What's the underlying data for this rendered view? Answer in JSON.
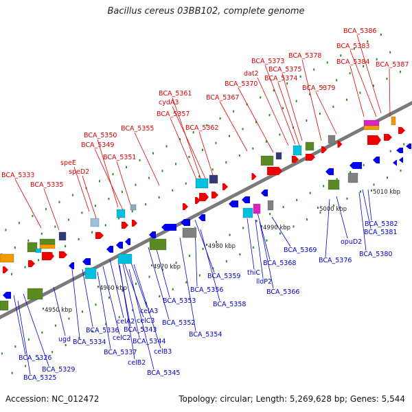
{
  "title": "Bacillus cereus 03BB102, complete genome",
  "footer": {
    "accession": "Accession: NC_012472",
    "summary": "Topology: circular; Length: 5,269,628 bp; Genes: 5,544"
  },
  "colors": {
    "forward_label": "#dd0000",
    "reverse_label": "#0000cc",
    "backbone": "#7a7a7a",
    "tick": "#2e8b2e",
    "forward_arrow": "#ee0000",
    "reverse_arrow": "#0000ee",
    "rna_cyan": "#00c0e0",
    "rna_green": "#5a8a22",
    "rna_navy": "#333a7a",
    "rna_gray": "#808080",
    "rna_magenta": "#e020c0",
    "rna_orange": "#f39a00"
  },
  "scale_labels": [
    "4950 kbp",
    "4960 kbp",
    "4970 kbp",
    "4980 kbp",
    "4990 kbp",
    "5000 kbp",
    "5010 kbp"
  ],
  "forward_genes": [
    "BCA_5333",
    "BCA_5335",
    "speE",
    "speD2",
    "BCA_5350",
    "BCA_5349",
    "BCA_5351",
    "BCA_5355",
    "BCA_5357",
    "BCA_5361",
    "cydA3",
    "BCA_5362",
    "BCA_5367",
    "BCA_5370",
    "dat2",
    "BCA_5373",
    "BCA_5375",
    "BCA_5374",
    "BCA_5378",
    "BCA_5379",
    "BCA_5383",
    "BCA_5384",
    "BCA_5386",
    "BCA_5387"
  ],
  "reverse_genes": [
    "BCA_5326",
    "BCA_5329",
    "BCA_5325",
    "ugd",
    "BCA_5334",
    "BCA_5336",
    "celC2",
    "BCA_5337",
    "celB2",
    "celA2",
    "celC3",
    "BCA_5343",
    "BCA_5344",
    "celA3",
    "celB3",
    "BCA_5345",
    "BCA_5352",
    "BCA_5353",
    "BCA_5354",
    "BCA_5356",
    "BCA_5358",
    "BCA_5359",
    "thiC",
    "lldP2",
    "BCA_5366",
    "BCA_5368",
    "BCA_5369",
    "BCA_5376",
    "opuD2",
    "BCA_5380",
    "BCA_5381",
    "BCA_5382"
  ]
}
